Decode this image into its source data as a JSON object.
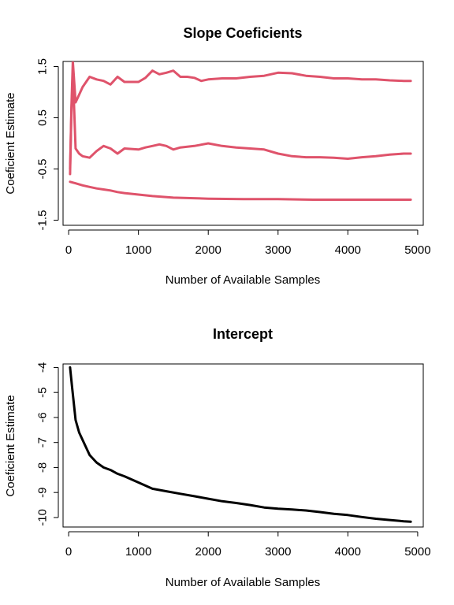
{
  "chart_data": [
    {
      "type": "line",
      "title": "Slope Coeficients",
      "xlabel": "Number of Available Samples",
      "ylabel": "Coeficient Estimate",
      "xlim": [
        -80,
        5080
      ],
      "ylim": [
        -1.6,
        1.6
      ],
      "xticks": [
        0,
        1000,
        2000,
        3000,
        4000,
        5000
      ],
      "xtick_labels": [
        "0",
        "1000",
        "2000",
        "3000",
        "4000",
        "5000"
      ],
      "yticks": [
        -1.5,
        -0.5,
        0.5,
        1.5
      ],
      "ytick_labels": [
        "-1.5",
        "-0.5",
        "0.5",
        "1.5"
      ],
      "line_color": "#DF536B",
      "series": [
        {
          "x": [
            20,
            40,
            60,
            100,
            150,
            200,
            300,
            400,
            500,
            600,
            700,
            800,
            1000,
            1100,
            1200,
            1300,
            1400,
            1500,
            1600,
            1700,
            1800,
            1900,
            2000,
            2200,
            2400,
            2600,
            2800,
            3000,
            3200,
            3400,
            3600,
            3800,
            4000,
            4200,
            4400,
            4600,
            4800,
            4900
          ],
          "y": [
            -0.6,
            0.7,
            1.6,
            0.8,
            0.95,
            1.1,
            1.3,
            1.25,
            1.22,
            1.15,
            1.3,
            1.2,
            1.2,
            1.28,
            1.42,
            1.35,
            1.38,
            1.42,
            1.3,
            1.3,
            1.28,
            1.22,
            1.25,
            1.27,
            1.27,
            1.3,
            1.32,
            1.38,
            1.37,
            1.32,
            1.3,
            1.27,
            1.27,
            1.25,
            1.25,
            1.23,
            1.22,
            1.22
          ]
        },
        {
          "x": [
            20,
            40,
            60,
            100,
            150,
            200,
            300,
            400,
            500,
            600,
            700,
            800,
            1000,
            1100,
            1200,
            1300,
            1400,
            1500,
            1600,
            1800,
            2000,
            2200,
            2400,
            2600,
            2800,
            3000,
            3200,
            3400,
            3600,
            3800,
            4000,
            4200,
            4400,
            4600,
            4800,
            4900
          ],
          "y": [
            -0.5,
            0.6,
            1.4,
            -0.1,
            -0.2,
            -0.25,
            -0.28,
            -0.15,
            -0.05,
            -0.1,
            -0.2,
            -0.1,
            -0.12,
            -0.08,
            -0.05,
            -0.02,
            -0.05,
            -0.12,
            -0.08,
            -0.05,
            0.0,
            -0.05,
            -0.08,
            -0.1,
            -0.12,
            -0.2,
            -0.25,
            -0.27,
            -0.27,
            -0.28,
            -0.3,
            -0.27,
            -0.25,
            -0.22,
            -0.2,
            -0.2
          ]
        },
        {
          "x": [
            20,
            100,
            200,
            300,
            400,
            500,
            600,
            700,
            800,
            1000,
            1200,
            1500,
            2000,
            2500,
            3000,
            3500,
            4000,
            4500,
            4900
          ],
          "y": [
            -0.75,
            -0.78,
            -0.82,
            -0.85,
            -0.88,
            -0.9,
            -0.92,
            -0.95,
            -0.97,
            -1.0,
            -1.03,
            -1.06,
            -1.08,
            -1.09,
            -1.09,
            -1.1,
            -1.1,
            -1.1,
            -1.1
          ]
        }
      ]
    },
    {
      "type": "line",
      "title": "Intercept",
      "xlabel": "Number of Available Samples",
      "ylabel": "Coeficient Estimate",
      "xlim": [
        -80,
        5080
      ],
      "ylim": [
        -10.38,
        -3.86
      ],
      "xticks": [
        0,
        1000,
        2000,
        3000,
        4000,
        5000
      ],
      "xtick_labels": [
        "0",
        "1000",
        "2000",
        "3000",
        "4000",
        "5000"
      ],
      "yticks": [
        -10,
        -9,
        -8,
        -7,
        -6,
        -5,
        -4
      ],
      "ytick_labels": [
        "-10",
        "-9",
        "-8",
        "-7",
        "-6",
        "-5",
        "-4"
      ],
      "line_color": "#000000",
      "series": [
        {
          "x": [
            20,
            50,
            100,
            150,
            200,
            300,
            400,
            500,
            600,
            700,
            800,
            1000,
            1200,
            1400,
            1600,
            1800,
            2000,
            2200,
            2400,
            2600,
            2800,
            3000,
            3200,
            3400,
            3600,
            3800,
            4000,
            4200,
            4400,
            4600,
            4800,
            4900
          ],
          "y": [
            -4.0,
            -4.8,
            -6.1,
            -6.6,
            -6.9,
            -7.5,
            -7.8,
            -8.0,
            -8.1,
            -8.25,
            -8.35,
            -8.6,
            -8.85,
            -8.95,
            -9.05,
            -9.15,
            -9.25,
            -9.35,
            -9.42,
            -9.5,
            -9.6,
            -9.65,
            -9.68,
            -9.72,
            -9.78,
            -9.85,
            -9.9,
            -9.98,
            -10.05,
            -10.1,
            -10.15,
            -10.17
          ]
        }
      ]
    }
  ]
}
